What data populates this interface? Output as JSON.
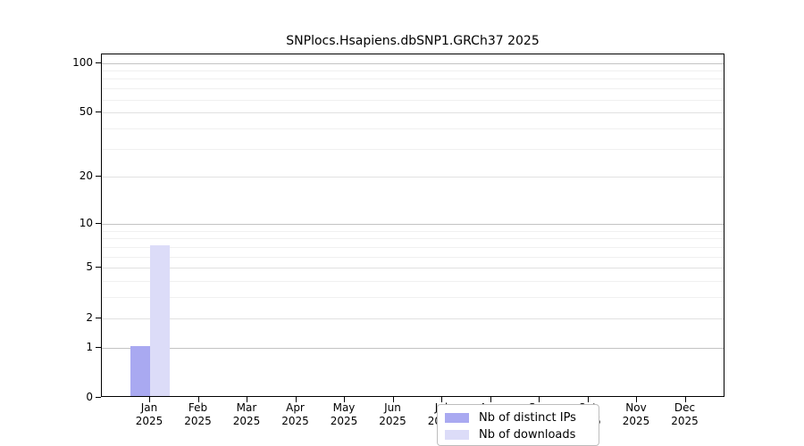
{
  "chart_data": {
    "type": "bar",
    "title": "SNPlocs.Hsapiens.dbSNP1.GRCh37 2025",
    "categories": [
      "Jan",
      "Feb",
      "Mar",
      "Apr",
      "May",
      "Jun",
      "Jul",
      "Aug",
      "Sep",
      "Oct",
      "Nov",
      "Dec"
    ],
    "x_year_label": "2025",
    "series": [
      {
        "name": "Nb of distinct IPs",
        "color": "#a9a9f1",
        "values": [
          1,
          0,
          0,
          0,
          0,
          0,
          0,
          0,
          0,
          0,
          0,
          0
        ]
      },
      {
        "name": "Nb of downloads",
        "color": "#dcdcf8",
        "values": [
          7,
          0,
          0,
          0,
          0,
          0,
          0,
          0,
          0,
          0,
          0,
          0
        ]
      }
    ],
    "y_axis": {
      "scale": "log1p",
      "ylim": [
        0,
        112.5
      ],
      "tick_values": [
        0,
        1,
        2,
        5,
        10,
        20,
        50,
        100
      ],
      "tick_labels": [
        "0",
        "1",
        "2",
        "5",
        "10",
        "20",
        "50",
        "100"
      ],
      "decade_gridline_values": [
        1,
        10,
        100
      ],
      "mid_gridline_values": [
        2,
        5,
        20,
        50
      ],
      "minor_gridline_values": [
        3,
        4,
        6,
        7,
        8,
        9,
        30,
        40,
        60,
        70,
        80,
        90
      ]
    },
    "legend": {
      "position": "bottom-center"
    },
    "grid": "horizontal-only"
  },
  "colors": {
    "axis": "#000000",
    "background": "#ffffff",
    "decade_gridline": "#c3c3c3",
    "mid_gridline": "#e1e1e1",
    "minor_gridline": "#f0f0f0",
    "legend_border": "#bdbdbd",
    "text": "#000000"
  }
}
